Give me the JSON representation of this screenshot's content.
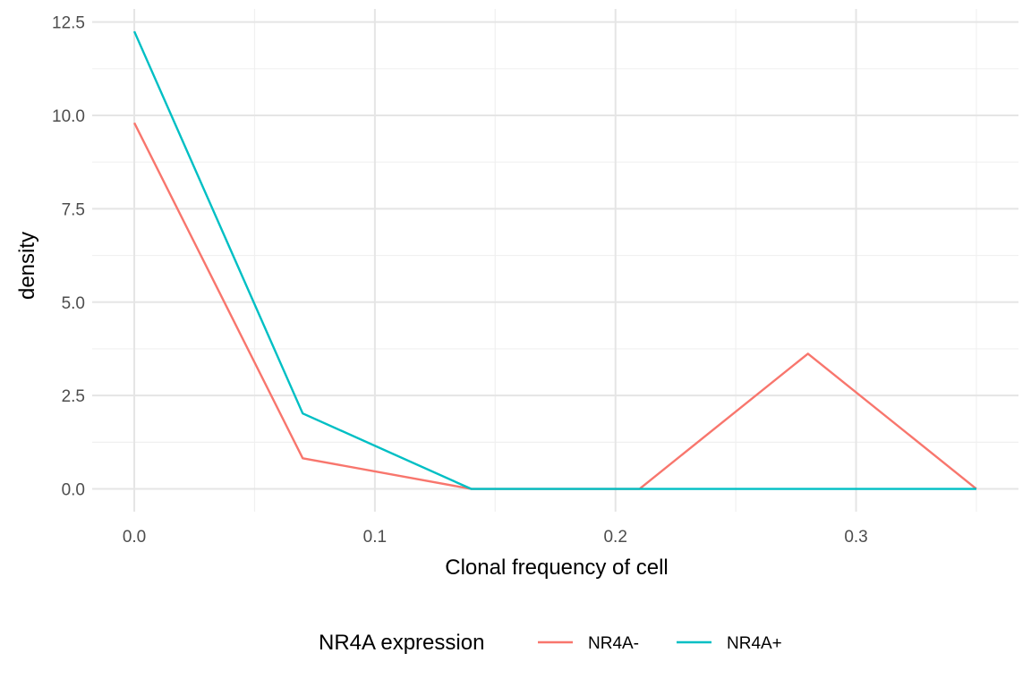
{
  "chart_data": {
    "type": "line",
    "title": "",
    "xlabel": "Clonal frequency of cell",
    "ylabel": "density",
    "xlim": [
      -0.0175,
      0.3675
    ],
    "ylim": [
      -0.61,
      12.85
    ],
    "x_ticks": [
      0.0,
      0.1,
      0.2,
      0.3
    ],
    "x_tick_labels": [
      "0.0",
      "0.1",
      "0.2",
      "0.3"
    ],
    "x_minor_ticks": [
      0.05,
      0.15,
      0.25,
      0.35
    ],
    "y_ticks": [
      0.0,
      2.5,
      5.0,
      7.5,
      10.0,
      12.5
    ],
    "y_tick_labels": [
      "0.0",
      "2.5",
      "5.0",
      "7.5",
      "10.0",
      "12.5"
    ],
    "y_minor_ticks": [
      1.25,
      3.75,
      6.25,
      8.75,
      11.25
    ],
    "grid": true,
    "legend": {
      "title": "NR4A expression",
      "position": "bottom"
    },
    "series": [
      {
        "name": "NR4A-",
        "color": "#F8766D",
        "x": [
          0.0,
          0.07,
          0.14,
          0.21,
          0.28,
          0.35
        ],
        "y": [
          9.8,
          0.82,
          0.0,
          0.0,
          3.62,
          0.0
        ]
      },
      {
        "name": "NR4A+",
        "color": "#00BFC4",
        "x": [
          0.0,
          0.07,
          0.14,
          0.21,
          0.28,
          0.35
        ],
        "y": [
          12.25,
          2.02,
          0.0,
          0.0,
          0.0,
          0.0
        ]
      }
    ]
  }
}
